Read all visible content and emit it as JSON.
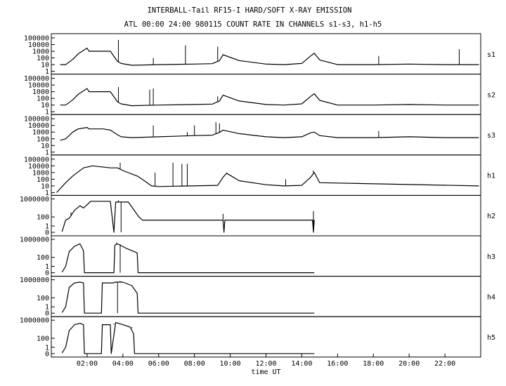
{
  "title_line1": "INTERBALL-Tail RF15-I HARD/SOFT X-RAY EMISSION",
  "title_line2": "ATL 00:00 24:00 980115  COUNT RATE IN CHANNELS s1-s3, h1-h5",
  "chart_data": [
    {
      "type": "line",
      "channel": "s1",
      "ylim": [
        1,
        100000
      ],
      "yticks": [
        "100000",
        "10000",
        "1000",
        "100",
        "10",
        "1"
      ],
      "xlim": [
        0,
        24
      ],
      "xlabel": "time UT",
      "xticks": [
        "02:00",
        "04:00",
        "06:00",
        "08:00",
        "10:00",
        "12:00",
        "14:00",
        "16:00",
        "18:00",
        "20:00",
        "22:00"
      ],
      "x": [
        0.5,
        0.8,
        1.2,
        1.5,
        2.0,
        2.1,
        2.9,
        3.3,
        3.7,
        3.9,
        4.5,
        6.0,
        8.0,
        9.0,
        9.4,
        9.6,
        10.5,
        12.0,
        13.0,
        14.0,
        14.5,
        14.7,
        15.0,
        16.0,
        18.0,
        20.0,
        22.0,
        23.9
      ],
      "y": [
        10,
        10,
        60,
        400,
        3000,
        1000,
        1000,
        1000,
        30,
        15,
        8,
        10,
        12,
        14,
        40,
        300,
        40,
        12,
        10,
        15,
        200,
        500,
        50,
        10,
        10,
        12,
        10,
        10
      ],
      "spikes": [
        {
          "x": 3.75,
          "y": 50000
        },
        {
          "x": 5.7,
          "y": 100
        },
        {
          "x": 7.5,
          "y": 8000
        },
        {
          "x": 9.3,
          "y": 5000
        },
        {
          "x": 18.3,
          "y": 200
        },
        {
          "x": 22.8,
          "y": 2000
        }
      ]
    },
    {
      "type": "line",
      "channel": "s2",
      "ylim": [
        1,
        100000
      ],
      "yticks": [
        "100000",
        "10000",
        "1000",
        "100",
        "10",
        "1"
      ],
      "xlim": [
        0,
        24
      ],
      "x": [
        0.5,
        0.8,
        1.2,
        1.5,
        2.0,
        2.1,
        2.9,
        3.3,
        3.7,
        3.9,
        4.5,
        6.0,
        8.0,
        9.0,
        9.4,
        9.6,
        10.5,
        12.0,
        13.0,
        14.0,
        14.5,
        14.7,
        15.0,
        16.0,
        18.0,
        20.0,
        22.0,
        23.9
      ],
      "y": [
        10,
        10,
        60,
        400,
        3000,
        1000,
        1000,
        1000,
        30,
        15,
        8,
        10,
        12,
        14,
        40,
        300,
        40,
        12,
        10,
        15,
        200,
        500,
        50,
        10,
        10,
        12,
        10,
        10
      ],
      "spikes": [
        {
          "x": 3.75,
          "y": 5000
        },
        {
          "x": 5.5,
          "y": 2000
        },
        {
          "x": 5.7,
          "y": 3000
        },
        {
          "x": 9.3,
          "y": 200
        }
      ]
    },
    {
      "type": "line",
      "channel": "s3",
      "ylim": [
        1,
        100000
      ],
      "yticks": [
        "100000",
        "10000",
        "1000",
        "100",
        "10",
        "1"
      ],
      "xlim": [
        0,
        24
      ],
      "x": [
        0.5,
        0.8,
        1.2,
        1.5,
        2.0,
        2.1,
        2.9,
        3.3,
        3.7,
        3.9,
        4.5,
        6.0,
        8.0,
        9.0,
        9.4,
        9.6,
        10.5,
        12.0,
        13.0,
        14.0,
        14.5,
        14.7,
        15.0,
        16.0,
        18.0,
        20.0,
        22.0,
        23.9
      ],
      "y": [
        60,
        100,
        1000,
        3000,
        5000,
        3000,
        3000,
        2000,
        400,
        200,
        150,
        200,
        300,
        350,
        900,
        2000,
        600,
        200,
        150,
        200,
        800,
        1000,
        300,
        150,
        150,
        200,
        150,
        150
      ],
      "spikes": [
        {
          "x": 5.7,
          "y": 10000
        },
        {
          "x": 7.6,
          "y": 1000
        },
        {
          "x": 8.0,
          "y": 10000
        },
        {
          "x": 9.2,
          "y": 30000
        },
        {
          "x": 9.4,
          "y": 20000
        },
        {
          "x": 18.3,
          "y": 1500
        }
      ]
    },
    {
      "type": "line",
      "channel": "h1",
      "ylim": [
        1,
        100000
      ],
      "yticks": [
        "100000",
        "10000",
        "1000",
        "100",
        "10",
        "1"
      ],
      "xlim": [
        0,
        24
      ],
      "x": [
        0.3,
        0.8,
        1.2,
        1.8,
        2.3,
        3.3,
        3.7,
        4.0,
        4.8,
        5.2,
        5.6,
        6.0,
        9.3,
        9.6,
        9.8,
        10.5,
        12.0,
        13.0,
        14.0,
        14.5,
        14.7,
        15.0,
        23.9
      ],
      "y": [
        1,
        30,
        300,
        5000,
        10000,
        5000,
        5000,
        2000,
        300,
        60,
        10,
        8,
        12,
        200,
        800,
        60,
        15,
        10,
        12,
        200,
        1000,
        30,
        10
      ],
      "spikes": [
        {
          "x": 3.85,
          "y": 30000
        },
        {
          "x": 5.8,
          "y": 1000
        },
        {
          "x": 6.8,
          "y": 30000
        },
        {
          "x": 7.3,
          "y": 20000
        },
        {
          "x": 7.6,
          "y": 20000
        },
        {
          "x": 13.1,
          "y": 100
        },
        {
          "x": 14.65,
          "y": 2000
        }
      ]
    },
    {
      "type": "line",
      "channel": "h2",
      "ylim": [
        0,
        1000000
      ],
      "yticks": [
        "1000000",
        "100",
        "1",
        "0"
      ],
      "xlim": [
        0,
        24
      ],
      "x": [
        0.6,
        0.8,
        1.0,
        1.3,
        1.6,
        1.8,
        2.0,
        2.2,
        2.8,
        3.3,
        3.5,
        3.6,
        4.3,
        4.9,
        5.1,
        9.6,
        9.65,
        9.7,
        14.6,
        14.65,
        14.7
      ],
      "y": [
        0.1,
        20,
        50,
        3000,
        30000,
        10000,
        50000,
        300000,
        300000,
        300000,
        0,
        200000,
        200000,
        100,
        20,
        20,
        0,
        20,
        20,
        0,
        20
      ],
      "spikes": [
        {
          "x": 1.1,
          "y": 200
        },
        {
          "x": 3.75,
          "y": 500000
        },
        {
          "x": 3.9,
          "y": 0
        },
        {
          "x": 9.6,
          "y": 500
        },
        {
          "x": 14.65,
          "y": 2000
        }
      ]
    },
    {
      "type": "line",
      "channel": "h3",
      "ylim": [
        0,
        1000000
      ],
      "yticks": [
        "1000000",
        "100",
        "1",
        "0"
      ],
      "xlim": [
        0,
        24
      ],
      "x": [
        0.6,
        0.8,
        1.0,
        1.3,
        1.6,
        1.8,
        1.85,
        3.5,
        3.55,
        3.7,
        4.2,
        4.8,
        4.85,
        14.7
      ],
      "y": [
        0.1,
        1,
        2000,
        30000,
        100000,
        3000,
        0,
        0,
        50000,
        100000,
        10000,
        1000,
        0,
        0
      ],
      "spikes": [
        {
          "x": 3.65,
          "y": 200000
        },
        {
          "x": 3.85,
          "y": 0
        }
      ]
    },
    {
      "type": "line",
      "channel": "h4",
      "ylim": [
        0,
        1000000
      ],
      "yticks": [
        "1000000",
        "100",
        "1",
        "0"
      ],
      "xlim": [
        0,
        24
      ],
      "x": [
        0.6,
        0.8,
        1.0,
        1.3,
        1.6,
        1.8,
        1.85,
        2.8,
        2.85,
        3.5,
        3.55,
        4.0,
        4.5,
        4.8,
        4.85,
        14.7
      ],
      "y": [
        0.1,
        1,
        20000,
        200000,
        300000,
        200000,
        0,
        0,
        200000,
        200000,
        300000,
        300000,
        50000,
        1000,
        0,
        0
      ],
      "spikes": [
        {
          "x": 3.7,
          "y": 0
        },
        {
          "x": 3.85,
          "y": 500000
        }
      ]
    },
    {
      "type": "line",
      "channel": "h5",
      "ylim": [
        0,
        1000000
      ],
      "yticks": [
        "1000000",
        "100",
        "1",
        "0"
      ],
      "xlim": [
        0,
        24
      ],
      "x": [
        0.6,
        0.8,
        1.0,
        1.3,
        1.6,
        1.8,
        1.85,
        2.8,
        2.85,
        3.3,
        3.35,
        3.6,
        4.0,
        4.4,
        4.6,
        4.65,
        14.7
      ],
      "y": [
        0.1,
        1,
        5000,
        100000,
        200000,
        100000,
        0,
        0,
        100000,
        100000,
        0,
        300000,
        100000,
        30000,
        1000,
        0,
        0
      ],
      "spikes": [
        {
          "x": 3.5,
          "y": 100000
        },
        {
          "x": 4.5,
          "y": 30000
        }
      ]
    }
  ]
}
